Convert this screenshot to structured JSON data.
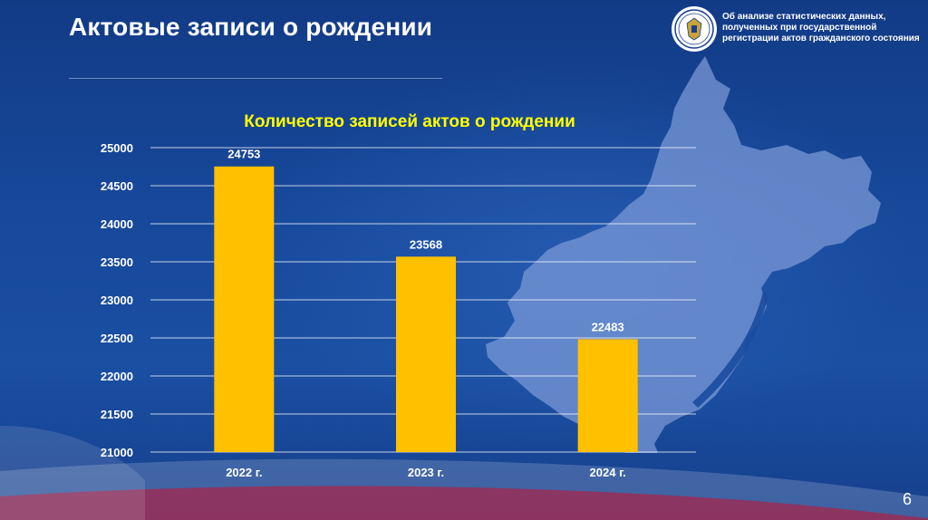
{
  "slide": {
    "title": "Актовые записи о рождении",
    "header_caption_lines": [
      "Об анализе статистических данных,",
      "полученных при государственной",
      "регистрации актов гражданского состояния"
    ],
    "page_number": "6"
  },
  "colors": {
    "background": "#17489a",
    "bar": "#ffc000",
    "chart_title": "#ffff00",
    "gridline": "#ffffff"
  },
  "icons": {
    "logo": "emblem-seal-icon",
    "map": "region-map-silhouette"
  },
  "chart_data": {
    "type": "bar",
    "title": "Количество записей актов о рождении",
    "categories": [
      "2022 г.",
      "2023 г.",
      "2024 г."
    ],
    "values": [
      24753,
      23568,
      22483
    ],
    "data_labels": [
      "24753",
      "23568",
      "22483"
    ],
    "ylim": [
      21000,
      25000
    ],
    "yticks": [
      21000,
      21500,
      22000,
      22500,
      23000,
      23500,
      24000,
      24500,
      25000
    ],
    "grid": true,
    "legend": "none"
  }
}
